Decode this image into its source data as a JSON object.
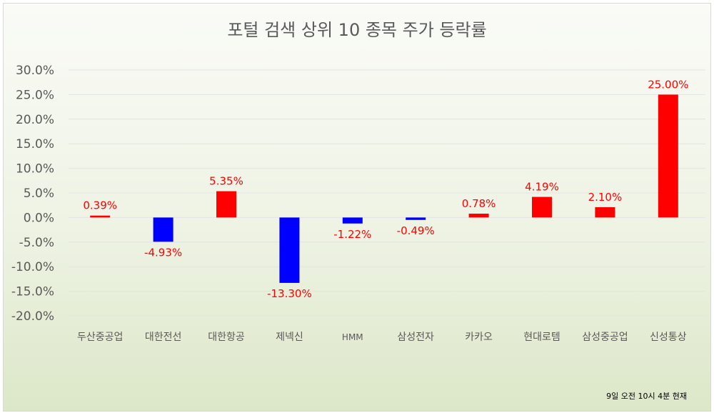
{
  "chart_data": {
    "type": "bar",
    "title": "포털 검색 상위 10 종목 주가 등락률",
    "categories": [
      "두산중공업",
      "대한전선",
      "대한항공",
      "제넥신",
      "HMM",
      "삼성전자",
      "카카오",
      "현대로템",
      "삼성중공업",
      "신성통상"
    ],
    "values": [
      0.39,
      -4.93,
      5.35,
      -13.3,
      -1.22,
      -0.49,
      0.78,
      4.19,
      2.1,
      25.0
    ],
    "data_labels": [
      "0.39%",
      "-4.93%",
      "5.35%",
      "-13.30%",
      "-1.22%",
      "-0.49%",
      "0.78%",
      "4.19%",
      "2.10%",
      "25.00%"
    ],
    "ylim": [
      -20,
      30
    ],
    "yticks": [
      30,
      25,
      20,
      15,
      10,
      5,
      0,
      -5,
      -10,
      -15,
      -20
    ],
    "ytick_labels": [
      "30.0%",
      "25.0%",
      "20.0%",
      "15.0%",
      "10.0%",
      "5.0%",
      "0.0%",
      "-5.0%",
      "-10.0%",
      "-15.0%",
      "-20.0%"
    ],
    "grid": true,
    "xlabel": "",
    "ylabel": "",
    "colors": {
      "positive": "#ff0000",
      "negative": "#0000ff",
      "label": "#ff0000"
    },
    "annotation": "9일 오전 10시 4분 현재"
  }
}
